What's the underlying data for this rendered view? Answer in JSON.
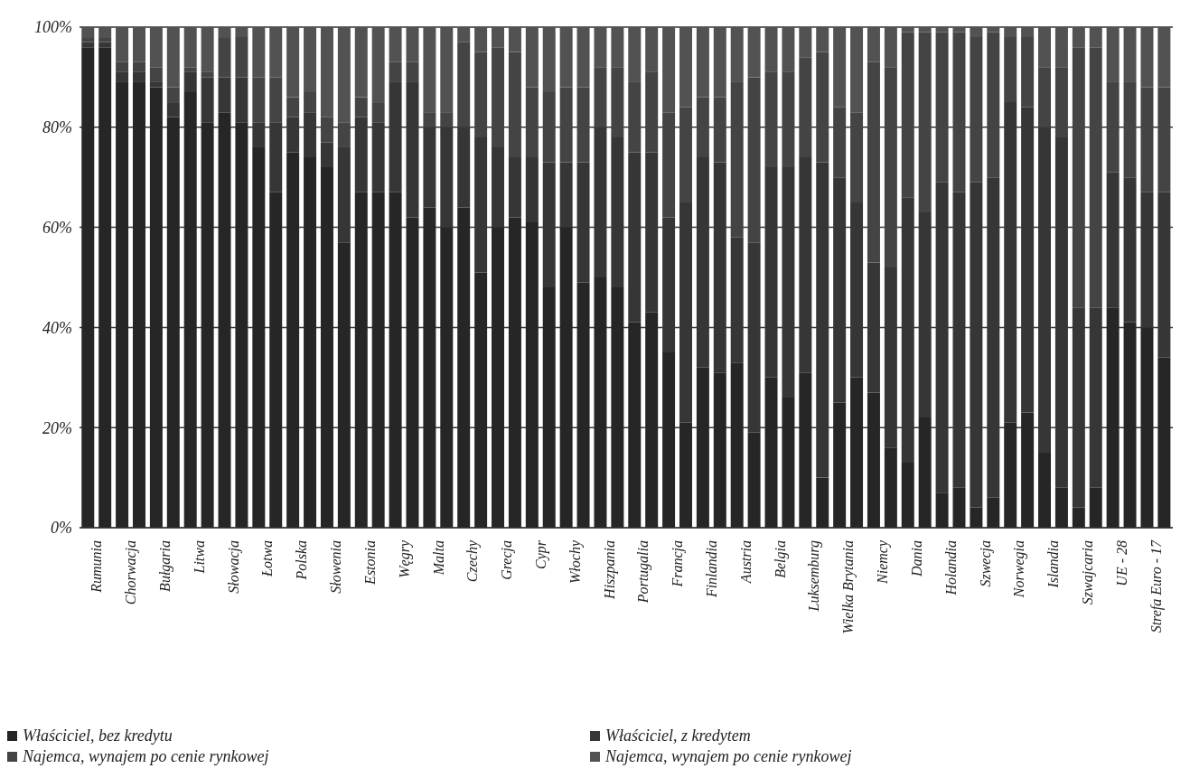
{
  "chart_data": {
    "type": "bar",
    "stacked": true,
    "grid": "y",
    "legend": "bottom",
    "categories": [
      "Rumunia",
      null,
      "Chorwacja",
      null,
      "Bułgaria",
      null,
      "Litwa",
      null,
      "Słowacja",
      null,
      "Łotwa",
      null,
      "Polska",
      null,
      "Słowenia",
      null,
      "Estonia",
      null,
      "Węgry",
      null,
      "Malta",
      null,
      "Czechy",
      null,
      "Grecja",
      null,
      "Cypr",
      null,
      "Włochy",
      null,
      "Hiszpania",
      null,
      "Portugalia",
      null,
      "Francja",
      null,
      "Finlandia",
      null,
      "Austria",
      null,
      "Belgia",
      null,
      "Luksemburg",
      null,
      "Wielka Brytania",
      null,
      "Niemcy",
      null,
      "Dania",
      null,
      "Holandia",
      null,
      "Szwecja",
      null,
      "Norwegia",
      null,
      "Islandia",
      null,
      "Szwajcaria",
      null,
      "UE - 28",
      null,
      "Strefa Euro - 17",
      null
    ],
    "series": [
      {
        "name": "Właściciel, bez kredytu",
        "color": "#262626",
        "values": [
          96,
          96,
          89,
          89,
          88,
          82,
          87,
          81,
          83,
          81,
          76,
          67,
          75,
          74,
          72,
          57,
          67,
          67,
          67,
          62,
          64,
          60,
          64,
          51,
          60,
          62,
          61,
          48,
          60,
          49,
          50,
          48,
          41,
          43,
          35,
          21,
          32,
          31,
          33,
          19,
          30,
          26,
          31,
          10,
          25,
          30,
          27,
          16,
          13,
          22,
          7,
          8,
          4,
          6,
          21,
          23,
          15,
          8,
          4,
          8,
          44,
          41,
          40,
          34
        ]
      },
      {
        "name": "Właściciel, z kredytem",
        "color": "#363636",
        "values": [
          1,
          1,
          2,
          2,
          1,
          3,
          4,
          9,
          7,
          9,
          5,
          14,
          7,
          9,
          5,
          19,
          15,
          14,
          22,
          27,
          16,
          20,
          16,
          27,
          16,
          12,
          13,
          25,
          13,
          24,
          30,
          30,
          34,
          32,
          27,
          44,
          42,
          42,
          25,
          38,
          42,
          46,
          43,
          63,
          45,
          35,
          26,
          36,
          53,
          41,
          62,
          59,
          65,
          64,
          64,
          61,
          65,
          70,
          40,
          36,
          27,
          29,
          27,
          33
        ]
      },
      {
        "name": "Najemca, wynajem po cenie rynkowej",
        "color": "#444444",
        "values": [
          1,
          1,
          2,
          2,
          3,
          3,
          1,
          1,
          8,
          8,
          9,
          9,
          4,
          4,
          5,
          5,
          4,
          4,
          4,
          4,
          3,
          3,
          17,
          17,
          20,
          21,
          14,
          14,
          15,
          15,
          12,
          14,
          14,
          16,
          21,
          19,
          12,
          13,
          31,
          33,
          19,
          19,
          20,
          22,
          14,
          18,
          40,
          40,
          33,
          36,
          30,
          32,
          29,
          29,
          13,
          14,
          12,
          14,
          52,
          52,
          18,
          19,
          21,
          21
        ]
      },
      {
        "name": "Najemca, wynajem po cenie rynkowej",
        "color": "#525252",
        "values": [
          2,
          2,
          7,
          7,
          8,
          12,
          8,
          9,
          2,
          2,
          10,
          10,
          14,
          13,
          18,
          19,
          14,
          15,
          7,
          7,
          17,
          17,
          3,
          5,
          4,
          5,
          12,
          13,
          12,
          12,
          8,
          8,
          11,
          9,
          17,
          16,
          14,
          14,
          11,
          10,
          9,
          9,
          6,
          5,
          16,
          17,
          7,
          8,
          1,
          1,
          1,
          1,
          2,
          1,
          2,
          2,
          8,
          8,
          4,
          4,
          11,
          11,
          12,
          12
        ]
      }
    ],
    "ylim": [
      0,
      100
    ],
    "yticks": [
      {
        "value": 0,
        "label": "0%"
      },
      {
        "value": 20,
        "label": "20%"
      },
      {
        "value": 40,
        "label": "40%"
      },
      {
        "value": 60,
        "label": "60%"
      },
      {
        "value": 80,
        "label": "80%"
      },
      {
        "value": 100,
        "label": "100%"
      }
    ]
  }
}
